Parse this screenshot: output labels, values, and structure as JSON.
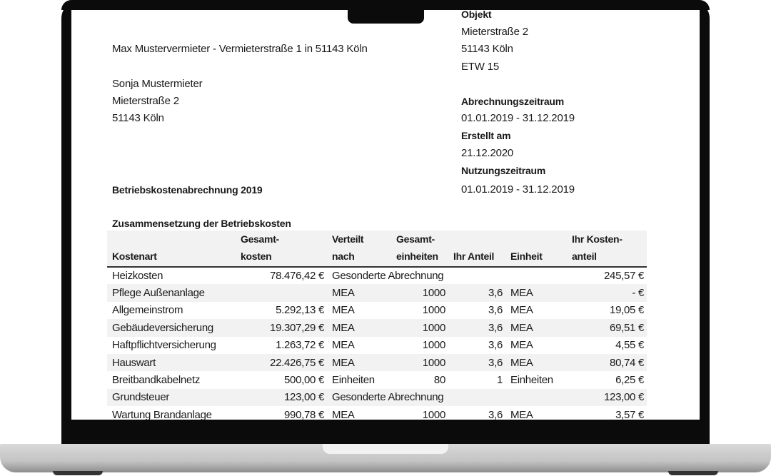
{
  "sender": "Max Mustervermieter - Vermieterstraße 1 in 51143 Köln",
  "recipient": {
    "name": "Sonja Mustermieter",
    "street": "Mieterstraße 2",
    "city": "51143 Köln"
  },
  "object": {
    "label": "Objekt",
    "street": "Mieterstraße 2",
    "city": "51143 Köln",
    "unit": "ETW 15"
  },
  "billing_period": {
    "label": "Abrechnungszeitraum",
    "value": "01.01.2019 - 31.12.2019"
  },
  "created": {
    "label": "Erstellt am",
    "value": "21.12.2020"
  },
  "usage_period": {
    "label": "Nutzungszeitraum",
    "value": "01.01.2019 - 31.12.2019"
  },
  "title": "Betriebskostenabrechnung 2019",
  "section_title": "Zusammensetzung der Betriebskosten",
  "table": {
    "headers": [
      [
        "",
        "Kostenart"
      ],
      [
        "Gesamt-",
        "kosten"
      ],
      [
        "Verteilt",
        "nach"
      ],
      [
        "Gesamt-",
        "einheiten"
      ],
      [
        "",
        "Ihr Anteil"
      ],
      [
        "",
        "Einheit"
      ],
      [
        "Ihr Kosten-",
        "anteil"
      ]
    ],
    "rows": [
      [
        "Heizkosten",
        "78.476,42 €",
        "Gesonderte Abrechnung",
        "",
        "",
        "",
        "245,57 €"
      ],
      [
        "Pflege Außenanlage",
        "",
        "MEA",
        "1000",
        "3,6",
        "MEA",
        "-    €"
      ],
      [
        "Allgemeinstrom",
        "5.292,13 €",
        "MEA",
        "1000",
        "3,6",
        "MEA",
        "19,05 €"
      ],
      [
        "Gebäudeversicherung",
        "19.307,29 €",
        "MEA",
        "1000",
        "3,6",
        "MEA",
        "69,51 €"
      ],
      [
        "Haftpflichtversicherung",
        "1.263,72 €",
        "MEA",
        "1000",
        "3,6",
        "MEA",
        "4,55 €"
      ],
      [
        "Hauswart",
        "22.426,75 €",
        "MEA",
        "1000",
        "3,6",
        "MEA",
        "80,74 €"
      ],
      [
        "Breitbandkabelnetz",
        "500,00 €",
        "Einheiten",
        "80",
        "1",
        "Einheiten",
        "6,25 €"
      ],
      [
        "Grundsteuer",
        "123,00 €",
        "Gesonderte Abrechnung",
        "",
        "",
        "",
        "123,00 €"
      ],
      [
        "Wartung Brandanlage",
        "990,78 €",
        "MEA",
        "1000",
        "3,6",
        "MEA",
        "3,57 €"
      ]
    ]
  }
}
